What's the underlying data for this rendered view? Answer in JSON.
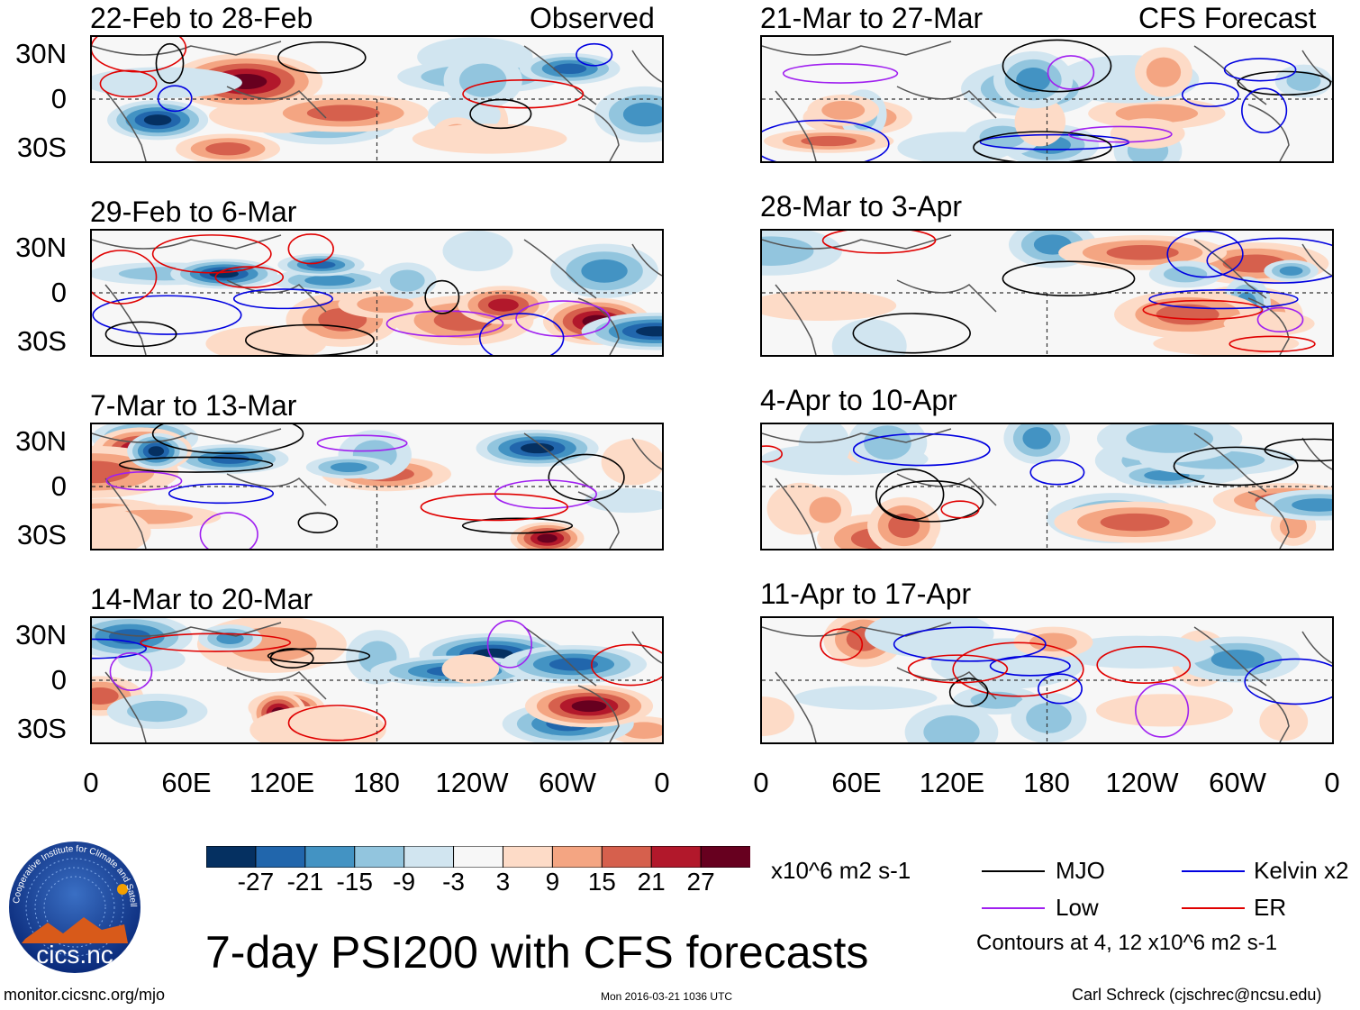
{
  "title": "7-day PSI200 with CFS forecasts",
  "headers": {
    "observed": "Observed",
    "forecast": "CFS Forecast"
  },
  "observed_panels": [
    {
      "period": "22-Feb to 28-Feb"
    },
    {
      "period": "29-Feb to 6-Mar"
    },
    {
      "period": "7-Mar to 13-Mar"
    },
    {
      "period": "14-Mar to 20-Mar"
    }
  ],
  "forecast_panels": [
    {
      "period": "21-Mar to 27-Mar"
    },
    {
      "period": "28-Mar to 3-Apr"
    },
    {
      "period": "4-Apr to 10-Apr"
    },
    {
      "period": "11-Apr to 17-Apr"
    }
  ],
  "lat_labels": [
    "30N",
    "0",
    "30S"
  ],
  "lon_labels": [
    "0",
    "60E",
    "120E",
    "180",
    "120W",
    "60W",
    "0"
  ],
  "colorbar": {
    "units": "x10^6 m2 s-1",
    "ticks": [
      "-27",
      "-21",
      "-15",
      "-9",
      "-3",
      "3",
      "9",
      "15",
      "21",
      "27"
    ],
    "colors": [
      "#053061",
      "#2166ac",
      "#4393c3",
      "#92c5de",
      "#d1e5f0",
      "#f7f7f7",
      "#fddbc7",
      "#f4a582",
      "#d6604d",
      "#b2182b",
      "#67001f"
    ]
  },
  "legend": {
    "items": [
      {
        "label": "MJO",
        "color": "#000000"
      },
      {
        "label": "Kelvin x2",
        "color": "#0000e0"
      },
      {
        "label": "Low",
        "color": "#a020f0"
      },
      {
        "label": "ER",
        "color": "#e00000"
      }
    ],
    "note": "Contours at 4, 12 x10^6 m2 s-1"
  },
  "logo": {
    "text": "cics.nc",
    "ring_text": "Cooperative Institute for Climate and Satellites"
  },
  "footer": {
    "url": "monitor.cicsnc.org/mjo",
    "timestamp": "Mon 2016-03-21 1036 UTC",
    "author": "Carl Schreck (cjschrec@ncsu.edu)"
  }
}
